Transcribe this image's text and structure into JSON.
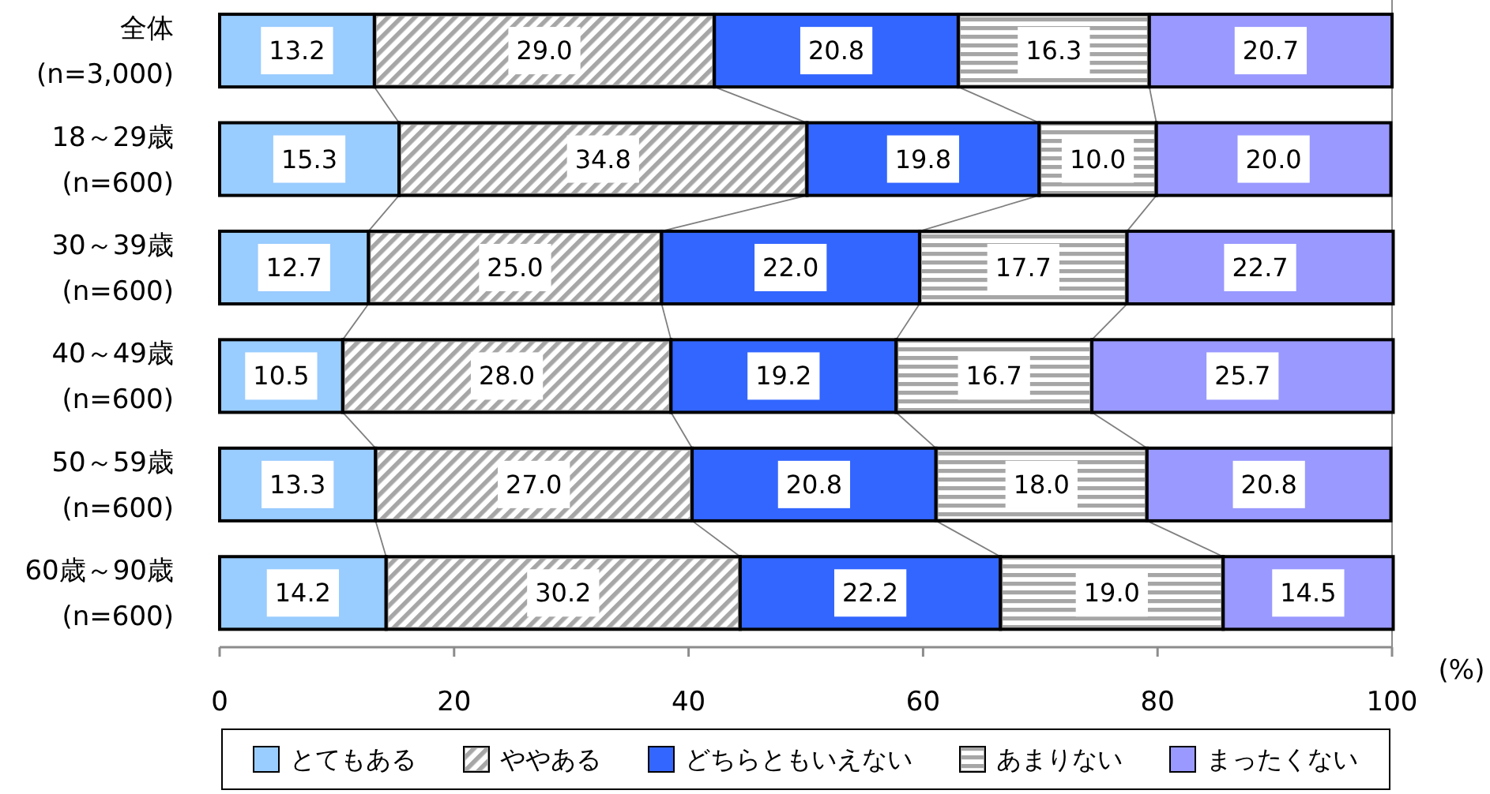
{
  "chart_data": {
    "type": "bar",
    "orientation": "horizontal",
    "stacked": true,
    "categories": [
      "全体\n(n=3,000)",
      "18～29歳\n(n=600)",
      "30～39歳\n(n=600)",
      "40～49歳\n(n=600)",
      "50～59歳\n(n=600)",
      "60歳～90歳\n(n=600)"
    ],
    "series": [
      {
        "name": "とてもある",
        "color": "#99ccff",
        "values": [
          13.2,
          15.3,
          12.7,
          10.5,
          13.3,
          14.2
        ],
        "value_labels": [
          "13.2",
          "15.3",
          "12.7",
          "10.5",
          "13.3",
          "14.2"
        ]
      },
      {
        "name": "ややある",
        "color": "#a6a6a6",
        "values": [
          29.0,
          34.8,
          25.0,
          28.0,
          27.0,
          30.2
        ],
        "value_labels": [
          "29.0",
          "34.8",
          "25.0",
          "28.0",
          "27.0",
          "30.2"
        ]
      },
      {
        "name": "どちらともいえない",
        "color": "#3366ff",
        "values": [
          20.8,
          19.8,
          22.0,
          19.2,
          20.8,
          22.2
        ],
        "value_labels": [
          "20.8",
          "19.8",
          "22.0",
          "19.2",
          "20.8",
          "22.2"
        ]
      },
      {
        "name": "あまりない",
        "color": "#a6a6a6",
        "values": [
          16.3,
          10.0,
          17.7,
          16.7,
          18.0,
          19.0
        ],
        "value_labels": [
          "16.3",
          "10.0",
          "17.7",
          "16.7",
          "18.0",
          "19.0"
        ]
      },
      {
        "name": "まったくない",
        "color": "#9999ff",
        "values": [
          20.7,
          20.0,
          22.7,
          25.7,
          20.8,
          14.5
        ],
        "value_labels": [
          "20.7",
          "20.0",
          "22.7",
          "25.7",
          "20.8",
          "14.5"
        ]
      }
    ],
    "xlim": [
      0,
      100
    ],
    "xticks": [
      0,
      20,
      40,
      60,
      80,
      100
    ],
    "xlabel": "(%)",
    "legend": "bottom"
  }
}
